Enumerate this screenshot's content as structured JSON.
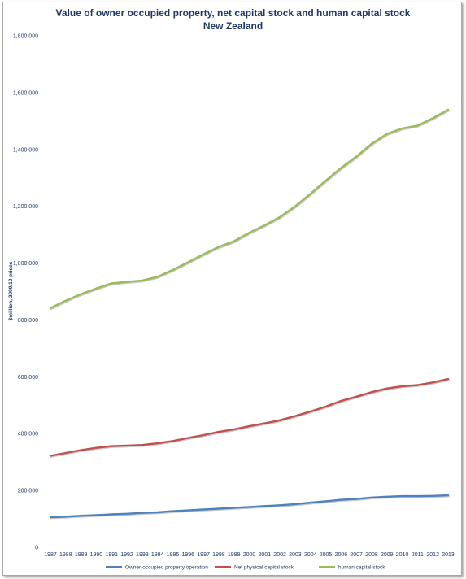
{
  "chart_data": {
    "type": "line",
    "title": "Value of owner occupied property, net capital stock and human capital stock",
    "subtitle": "New Zealand",
    "xlabel": "",
    "ylabel": "$million, 2009/10 prices",
    "ylim": [
      0,
      1800000
    ],
    "yticks": [
      0,
      200000,
      400000,
      600000,
      800000,
      1000000,
      1200000,
      1400000,
      1600000,
      1800000
    ],
    "grid": false,
    "legend_position": "bottom",
    "x": [
      1987,
      1988,
      1989,
      1990,
      1991,
      1992,
      1993,
      1994,
      1995,
      1996,
      1997,
      1998,
      1999,
      2000,
      2001,
      2002,
      2003,
      2004,
      2005,
      2006,
      2007,
      2008,
      2009,
      2010,
      2011,
      2012,
      2013
    ],
    "series": [
      {
        "name": "Owner-occupied property operation",
        "color": "#4f81bd",
        "values": [
          106000,
          108000,
          111000,
          113000,
          116000,
          118000,
          121000,
          123000,
          127000,
          130000,
          133000,
          136000,
          139000,
          142000,
          145000,
          148000,
          152000,
          157000,
          162000,
          167000,
          170000,
          175000,
          178000,
          180000,
          180000,
          181000,
          183000
        ]
      },
      {
        "name": "Net physical capital stock",
        "color": "#c0504d",
        "values": [
          322000,
          332000,
          342000,
          350000,
          356000,
          358000,
          360000,
          366000,
          374000,
          385000,
          395000,
          406000,
          415000,
          426000,
          436000,
          447000,
          462000,
          478000,
          495000,
          515000,
          530000,
          546000,
          559000,
          567000,
          571000,
          580000,
          592000
        ]
      },
      {
        "name": "human capital stock",
        "color": "#9bbb59",
        "values": [
          842000,
          868000,
          891000,
          911000,
          929000,
          934000,
          939000,
          952000,
          976000,
          1003000,
          1031000,
          1057000,
          1077000,
          1107000,
          1133000,
          1162000,
          1200000,
          1244000,
          1290000,
          1335000,
          1375000,
          1420000,
          1455000,
          1474000,
          1484000,
          1510000,
          1540000
        ]
      }
    ]
  }
}
